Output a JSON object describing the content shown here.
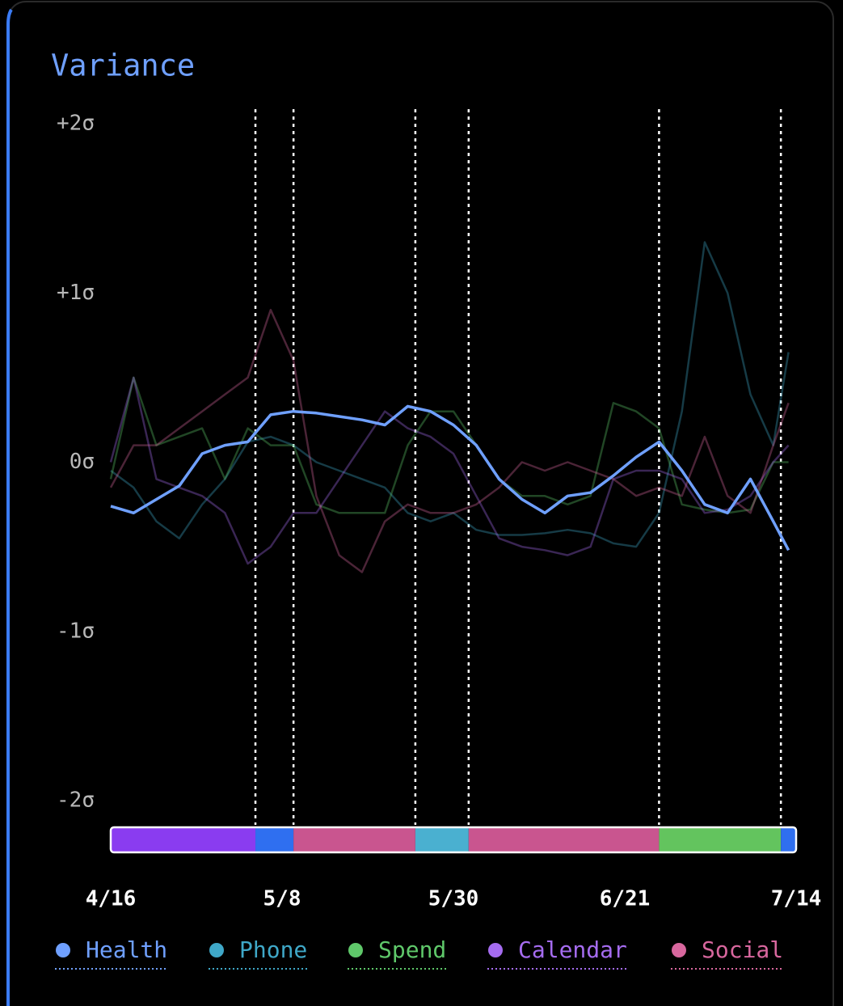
{
  "chart_data": {
    "type": "line",
    "title": "Variance",
    "title_color": "#6fa0ff",
    "x": [
      0,
      3,
      6,
      9,
      12,
      15,
      18,
      21,
      24,
      27,
      30,
      33,
      36,
      39,
      42,
      45,
      48,
      51,
      54,
      57,
      60,
      63,
      66,
      69,
      72,
      75,
      78,
      81,
      84,
      87,
      89
    ],
    "xlim": [
      0,
      90
    ],
    "xticks": [
      {
        "value": 0,
        "label": "4/16"
      },
      {
        "value": 22,
        "label": "5/8"
      },
      {
        "value": 44,
        "label": "5/30"
      },
      {
        "value": 66,
        "label": "6/21"
      },
      {
        "value": 89,
        "label": "7/14"
      }
    ],
    "ylim": [
      -2,
      2
    ],
    "yticks": [
      {
        "value": 2,
        "label": "+2σ"
      },
      {
        "value": 1,
        "label": "+1σ"
      },
      {
        "value": 0,
        "label": "0σ"
      },
      {
        "value": -1,
        "label": "-1σ"
      },
      {
        "value": -2,
        "label": "-2σ"
      }
    ],
    "markers": [
      19,
      24,
      40,
      47,
      72,
      88
    ],
    "segments": [
      {
        "start": 0,
        "end": 19,
        "color": "#8a3cf0"
      },
      {
        "start": 19,
        "end": 24,
        "color": "#2f6ff0"
      },
      {
        "start": 24,
        "end": 40,
        "color": "#c9558f"
      },
      {
        "start": 40,
        "end": 47,
        "color": "#4ab0d0"
      },
      {
        "start": 47,
        "end": 72,
        "color": "#c9558f"
      },
      {
        "start": 72,
        "end": 88,
        "color": "#63c45e"
      },
      {
        "start": 88,
        "end": 90,
        "color": "#2f6ff0"
      }
    ],
    "series": [
      {
        "name": "Phone",
        "color": "#3fa8c8",
        "opacity": 0.35,
        "values": [
          -0.05,
          -0.15,
          -0.35,
          -0.45,
          -0.25,
          -0.1,
          0.12,
          0.15,
          0.1,
          0.0,
          -0.05,
          -0.1,
          -0.15,
          -0.3,
          -0.35,
          -0.3,
          -0.4,
          -0.43,
          -0.43,
          -0.42,
          -0.4,
          -0.42,
          -0.48,
          -0.5,
          -0.3,
          0.3,
          1.3,
          1.0,
          0.4,
          0.1,
          0.65
        ]
      },
      {
        "name": "Spend",
        "color": "#5fc86a",
        "opacity": 0.35,
        "values": [
          -0.1,
          0.5,
          0.1,
          0.15,
          0.2,
          -0.1,
          0.2,
          0.1,
          0.1,
          -0.25,
          -0.3,
          -0.3,
          -0.3,
          0.1,
          0.3,
          0.3,
          0.1,
          -0.1,
          -0.2,
          -0.2,
          -0.25,
          -0.2,
          0.35,
          0.3,
          0.2,
          -0.25,
          -0.28,
          -0.3,
          -0.28,
          0.0,
          0.0
        ]
      },
      {
        "name": "Calendar",
        "color": "#a56cf0",
        "opacity": 0.35,
        "values": [
          0.0,
          0.5,
          -0.1,
          -0.15,
          -0.2,
          -0.3,
          -0.6,
          -0.5,
          -0.3,
          -0.3,
          -0.1,
          0.1,
          0.3,
          0.2,
          0.15,
          0.05,
          -0.2,
          -0.45,
          -0.5,
          -0.52,
          -0.55,
          -0.5,
          -0.1,
          -0.05,
          -0.05,
          -0.1,
          -0.3,
          -0.28,
          -0.2,
          0.0,
          0.1
        ]
      },
      {
        "name": "Social",
        "color": "#d8679e",
        "opacity": 0.35,
        "values": [
          -0.15,
          0.1,
          0.1,
          0.2,
          0.3,
          0.4,
          0.5,
          0.9,
          0.6,
          -0.2,
          -0.55,
          -0.65,
          -0.35,
          -0.25,
          -0.3,
          -0.3,
          -0.25,
          -0.15,
          0.0,
          -0.05,
          0.0,
          -0.05,
          -0.1,
          -0.2,
          -0.15,
          -0.2,
          0.15,
          -0.2,
          -0.3,
          0.1,
          0.35
        ]
      },
      {
        "name": "Health",
        "color": "#6fa0ff",
        "opacity": 1,
        "values": [
          -0.26,
          -0.3,
          -0.22,
          -0.14,
          0.05,
          0.1,
          0.12,
          0.28,
          0.3,
          0.29,
          0.27,
          0.25,
          0.22,
          0.33,
          0.3,
          0.22,
          0.1,
          -0.1,
          -0.22,
          -0.3,
          -0.2,
          -0.18,
          -0.08,
          0.03,
          0.12,
          -0.05,
          -0.25,
          -0.3,
          -0.1,
          -0.35,
          -0.52
        ]
      }
    ],
    "legend_order": [
      "Health",
      "Phone",
      "Spend",
      "Calendar",
      "Social"
    ]
  }
}
